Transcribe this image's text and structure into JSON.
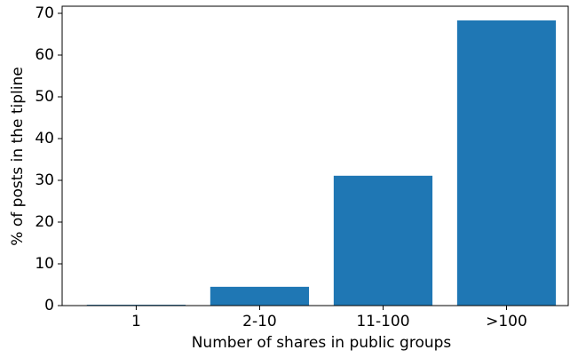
{
  "chart_data": {
    "type": "bar",
    "x_label": "Number of shares in public groups",
    "y_label": "% of posts in the tipline",
    "categories": [
      "1",
      "2-10",
      "11-100",
      ">100"
    ],
    "values": [
      0.2,
      4.5,
      31.1,
      68.3
    ],
    "color": "#1f77b4",
    "ylim": [
      0,
      71.7
    ],
    "yticks": [
      0,
      10,
      20,
      30,
      40,
      50,
      60,
      70
    ],
    "grid": false
  }
}
